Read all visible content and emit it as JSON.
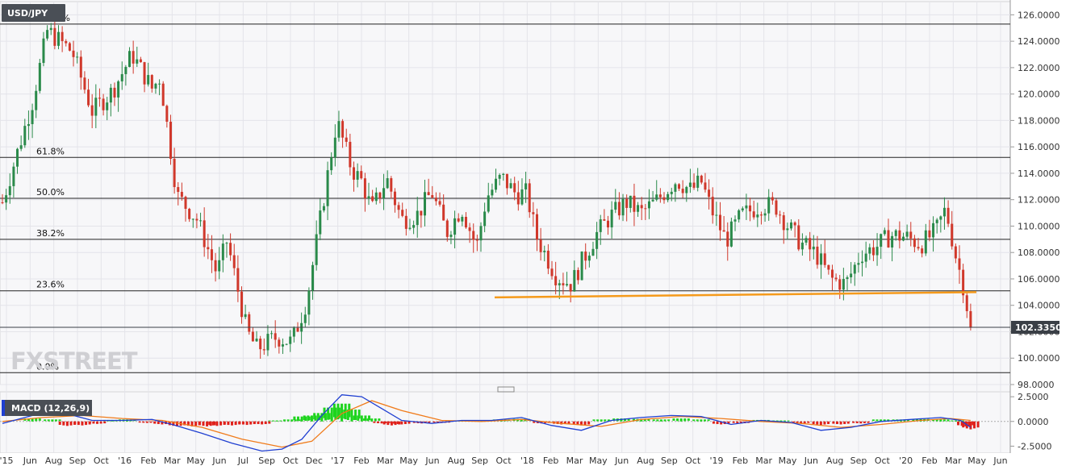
{
  "chart_data": {
    "type": "candlestick",
    "symbol": "USD/JPY",
    "last_price": "102.3350",
    "watermark": "FXSTREET",
    "y_axis": {
      "range": [
        98.0,
        127.0
      ],
      "ticks": [
        "98.0000",
        "100.0000",
        "102.0000",
        "104.0000",
        "106.0000",
        "108.0000",
        "110.0000",
        "112.0000",
        "114.0000",
        "116.0000",
        "118.0000",
        "120.0000",
        "122.0000",
        "124.0000",
        "126.0000"
      ]
    },
    "x_axis": {
      "labels": [
        "'15",
        "Jun",
        "Aug",
        "Sep",
        "Oct",
        "'16",
        "Feb",
        "Mar",
        "May",
        "Jun",
        "Jul",
        "Sep",
        "Oct",
        "Dec",
        "'17",
        "Feb",
        "Mar",
        "May",
        "Jun",
        "Aug",
        "Sep",
        "Oct",
        "'18",
        "Feb",
        "Mar",
        "May",
        "Jun",
        "Aug",
        "Sep",
        "Oct",
        "'19",
        "Feb",
        "Mar",
        "May",
        "Jun",
        "Aug",
        "Sep",
        "Oct",
        "'20",
        "Feb",
        "Mar",
        "May",
        "Jun"
      ]
    },
    "fibonacci_levels": [
      {
        "label": "100.0%",
        "value": 125.3
      },
      {
        "label": "61.8%",
        "value": 115.2
      },
      {
        "label": "50.0%",
        "value": 112.1
      },
      {
        "label": "38.2%",
        "value": 109.0
      },
      {
        "label": "23.6%",
        "value": 105.1
      },
      {
        "label": "0.0%",
        "value": 98.9
      }
    ],
    "support_trendline": {
      "start": 104.6,
      "end": 105.0,
      "color": "#f59a1b"
    },
    "price_path": [
      {
        "t": 0,
        "v": 111.8
      },
      {
        "t": 0.03,
        "v": 119.4
      },
      {
        "t": 0.045,
        "v": 124.8
      },
      {
        "t": 0.07,
        "v": 123.2
      },
      {
        "t": 0.09,
        "v": 118.7
      },
      {
        "t": 0.11,
        "v": 120.2
      },
      {
        "t": 0.13,
        "v": 123.0
      },
      {
        "t": 0.15,
        "v": 120.4
      },
      {
        "t": 0.158,
        "v": 121.3
      },
      {
        "t": 0.175,
        "v": 112.3
      },
      {
        "t": 0.195,
        "v": 110.5
      },
      {
        "t": 0.215,
        "v": 106.4
      },
      {
        "t": 0.225,
        "v": 108.9
      },
      {
        "t": 0.245,
        "v": 102.0
      },
      {
        "t": 0.255,
        "v": 100.7
      },
      {
        "t": 0.275,
        "v": 101.6
      },
      {
        "t": 0.29,
        "v": 101.2
      },
      {
        "t": 0.305,
        "v": 104.4
      },
      {
        "t": 0.325,
        "v": 113.5
      },
      {
        "t": 0.335,
        "v": 118.0
      },
      {
        "t": 0.35,
        "v": 114.3
      },
      {
        "t": 0.36,
        "v": 113.4
      },
      {
        "t": 0.37,
        "v": 111.2
      },
      {
        "t": 0.385,
        "v": 113.6
      },
      {
        "t": 0.4,
        "v": 110.5
      },
      {
        "t": 0.415,
        "v": 110.8
      },
      {
        "t": 0.43,
        "v": 112.6
      },
      {
        "t": 0.445,
        "v": 109.5
      },
      {
        "t": 0.46,
        "v": 111.4
      },
      {
        "t": 0.475,
        "v": 108.4
      },
      {
        "t": 0.485,
        "v": 112.2
      },
      {
        "t": 0.5,
        "v": 113.7
      },
      {
        "t": 0.515,
        "v": 112.4
      },
      {
        "t": 0.525,
        "v": 112.5
      },
      {
        "t": 0.535,
        "v": 109.2
      },
      {
        "t": 0.555,
        "v": 106.2
      },
      {
        "t": 0.57,
        "v": 105.6
      },
      {
        "t": 0.58,
        "v": 107.2
      },
      {
        "t": 0.595,
        "v": 109.4
      },
      {
        "t": 0.61,
        "v": 110.8
      },
      {
        "t": 0.625,
        "v": 111.8
      },
      {
        "t": 0.64,
        "v": 111.0
      },
      {
        "t": 0.655,
        "v": 111.9
      },
      {
        "t": 0.675,
        "v": 113.5
      },
      {
        "t": 0.69,
        "v": 112.7
      },
      {
        "t": 0.7,
        "v": 113.4
      },
      {
        "t": 0.71,
        "v": 111.3
      },
      {
        "t": 0.725,
        "v": 108.9
      },
      {
        "t": 0.74,
        "v": 110.8
      },
      {
        "t": 0.76,
        "v": 111.6
      },
      {
        "t": 0.775,
        "v": 111.5
      },
      {
        "t": 0.785,
        "v": 110.2
      },
      {
        "t": 0.8,
        "v": 108.7
      },
      {
        "t": 0.815,
        "v": 107.9
      },
      {
        "t": 0.83,
        "v": 106.0
      },
      {
        "t": 0.845,
        "v": 105.6
      },
      {
        "t": 0.86,
        "v": 107.9
      },
      {
        "t": 0.875,
        "v": 108.4
      },
      {
        "t": 0.89,
        "v": 109.3
      },
      {
        "t": 0.905,
        "v": 109.2
      },
      {
        "t": 0.92,
        "v": 108.6
      },
      {
        "t": 0.935,
        "v": 109.6
      },
      {
        "t": 0.945,
        "v": 111.3
      },
      {
        "t": 0.955,
        "v": 107.8
      },
      {
        "t": 0.963,
        "v": 105.4
      },
      {
        "t": 0.97,
        "v": 102.3
      }
    ],
    "macd": {
      "label": "MACD (12,26,9)",
      "range": [
        -3.2,
        3.0
      ],
      "ticks": [
        "2.5000",
        "0.0000",
        "-2.5000"
      ],
      "macd_color": "#1f3fd1",
      "signal_color": "#f07b1a",
      "hist_up_color": "#1ed41e",
      "hist_down_color": "#e0211b",
      "macd_path": [
        {
          "t": 0,
          "v": -0.2
        },
        {
          "t": 0.03,
          "v": 0.6
        },
        {
          "t": 0.06,
          "v": 0.9
        },
        {
          "t": 0.09,
          "v": 0.1
        },
        {
          "t": 0.12,
          "v": 0.1
        },
        {
          "t": 0.15,
          "v": 0.2
        },
        {
          "t": 0.17,
          "v": -0.3
        },
        {
          "t": 0.2,
          "v": -1.2
        },
        {
          "t": 0.23,
          "v": -2.2
        },
        {
          "t": 0.26,
          "v": -3.0
        },
        {
          "t": 0.28,
          "v": -2.8
        },
        {
          "t": 0.3,
          "v": -1.8
        },
        {
          "t": 0.32,
          "v": 0.6
        },
        {
          "t": 0.34,
          "v": 2.7
        },
        {
          "t": 0.36,
          "v": 2.5
        },
        {
          "t": 0.38,
          "v": 1.3
        },
        {
          "t": 0.4,
          "v": 0.1
        },
        {
          "t": 0.43,
          "v": -0.2
        },
        {
          "t": 0.46,
          "v": 0.1
        },
        {
          "t": 0.49,
          "v": 0.1
        },
        {
          "t": 0.52,
          "v": 0.4
        },
        {
          "t": 0.55,
          "v": -0.4
        },
        {
          "t": 0.58,
          "v": -0.9
        },
        {
          "t": 0.61,
          "v": 0.1
        },
        {
          "t": 0.64,
          "v": 0.4
        },
        {
          "t": 0.67,
          "v": 0.6
        },
        {
          "t": 0.7,
          "v": 0.5
        },
        {
          "t": 0.73,
          "v": -0.3
        },
        {
          "t": 0.76,
          "v": 0.1
        },
        {
          "t": 0.79,
          "v": -0.1
        },
        {
          "t": 0.82,
          "v": -0.9
        },
        {
          "t": 0.85,
          "v": -0.6
        },
        {
          "t": 0.88,
          "v": 0.0
        },
        {
          "t": 0.91,
          "v": 0.2
        },
        {
          "t": 0.94,
          "v": 0.4
        },
        {
          "t": 0.96,
          "v": 0.1
        },
        {
          "t": 0.97,
          "v": -0.6
        }
      ],
      "signal_path": [
        {
          "t": 0,
          "v": 0.0
        },
        {
          "t": 0.04,
          "v": 0.4
        },
        {
          "t": 0.08,
          "v": 0.6
        },
        {
          "t": 0.12,
          "v": 0.3
        },
        {
          "t": 0.16,
          "v": 0.1
        },
        {
          "t": 0.2,
          "v": -0.6
        },
        {
          "t": 0.24,
          "v": -1.8
        },
        {
          "t": 0.28,
          "v": -2.6
        },
        {
          "t": 0.31,
          "v": -2.0
        },
        {
          "t": 0.34,
          "v": 0.8
        },
        {
          "t": 0.37,
          "v": 2.1
        },
        {
          "t": 0.4,
          "v": 1.1
        },
        {
          "t": 0.44,
          "v": 0.1
        },
        {
          "t": 0.48,
          "v": 0.0
        },
        {
          "t": 0.52,
          "v": 0.2
        },
        {
          "t": 0.56,
          "v": -0.2
        },
        {
          "t": 0.6,
          "v": -0.5
        },
        {
          "t": 0.64,
          "v": 0.2
        },
        {
          "t": 0.68,
          "v": 0.5
        },
        {
          "t": 0.72,
          "v": 0.3
        },
        {
          "t": 0.76,
          "v": 0.0
        },
        {
          "t": 0.8,
          "v": -0.2
        },
        {
          "t": 0.84,
          "v": -0.6
        },
        {
          "t": 0.88,
          "v": -0.3
        },
        {
          "t": 0.92,
          "v": 0.1
        },
        {
          "t": 0.95,
          "v": 0.3
        },
        {
          "t": 0.97,
          "v": 0.1
        }
      ],
      "histogram": [
        {
          "t": 0.03,
          "v": 0.3
        },
        {
          "t": 0.05,
          "v": 0.2
        },
        {
          "t": 0.065,
          "v": -0.45
        },
        {
          "t": 0.08,
          "v": -0.4
        },
        {
          "t": 0.095,
          "v": -0.25
        },
        {
          "t": 0.11,
          "v": 0.15
        },
        {
          "t": 0.125,
          "v": 0.2
        },
        {
          "t": 0.145,
          "v": -0.15
        },
        {
          "t": 0.16,
          "v": -0.3
        },
        {
          "t": 0.175,
          "v": -0.5
        },
        {
          "t": 0.19,
          "v": -0.5
        },
        {
          "t": 0.205,
          "v": -0.5
        },
        {
          "t": 0.215,
          "v": -0.45
        },
        {
          "t": 0.23,
          "v": -0.4
        },
        {
          "t": 0.245,
          "v": -0.35
        },
        {
          "t": 0.26,
          "v": -0.3
        },
        {
          "t": 0.275,
          "v": 0.1
        },
        {
          "t": 0.29,
          "v": 0.2
        },
        {
          "t": 0.3,
          "v": 0.5
        },
        {
          "t": 0.31,
          "v": 0.6
        },
        {
          "t": 0.32,
          "v": 0.85
        },
        {
          "t": 0.33,
          "v": 1.4
        },
        {
          "t": 0.34,
          "v": 1.8
        },
        {
          "t": 0.35,
          "v": 1.2
        },
        {
          "t": 0.36,
          "v": 0.6
        },
        {
          "t": 0.37,
          "v": 0.3
        },
        {
          "t": 0.38,
          "v": -0.2
        },
        {
          "t": 0.39,
          "v": -0.4
        },
        {
          "t": 0.4,
          "v": -0.3
        },
        {
          "t": 0.42,
          "v": -0.2
        },
        {
          "t": 0.44,
          "v": -0.15
        },
        {
          "t": 0.46,
          "v": 0.1
        },
        {
          "t": 0.48,
          "v": 0.1
        },
        {
          "t": 0.5,
          "v": 0.2
        },
        {
          "t": 0.52,
          "v": 0.25
        },
        {
          "t": 0.54,
          "v": -0.2
        },
        {
          "t": 0.56,
          "v": -0.3
        },
        {
          "t": 0.58,
          "v": -0.4
        },
        {
          "t": 0.6,
          "v": 0.2
        },
        {
          "t": 0.62,
          "v": 0.3
        },
        {
          "t": 0.64,
          "v": 0.25
        },
        {
          "t": 0.66,
          "v": 0.2
        },
        {
          "t": 0.68,
          "v": 0.3
        },
        {
          "t": 0.7,
          "v": 0.2
        },
        {
          "t": 0.72,
          "v": -0.3
        },
        {
          "t": 0.74,
          "v": -0.2
        },
        {
          "t": 0.76,
          "v": 0.15
        },
        {
          "t": 0.78,
          "v": 0.1
        },
        {
          "t": 0.8,
          "v": -0.2
        },
        {
          "t": 0.82,
          "v": -0.35
        },
        {
          "t": 0.84,
          "v": -0.3
        },
        {
          "t": 0.86,
          "v": -0.2
        },
        {
          "t": 0.88,
          "v": 0.2
        },
        {
          "t": 0.9,
          "v": 0.2
        },
        {
          "t": 0.92,
          "v": 0.25
        },
        {
          "t": 0.94,
          "v": 0.2
        },
        {
          "t": 0.955,
          "v": 0.1
        },
        {
          "t": 0.965,
          "v": -0.5
        },
        {
          "t": 0.97,
          "v": -0.8
        }
      ]
    }
  }
}
